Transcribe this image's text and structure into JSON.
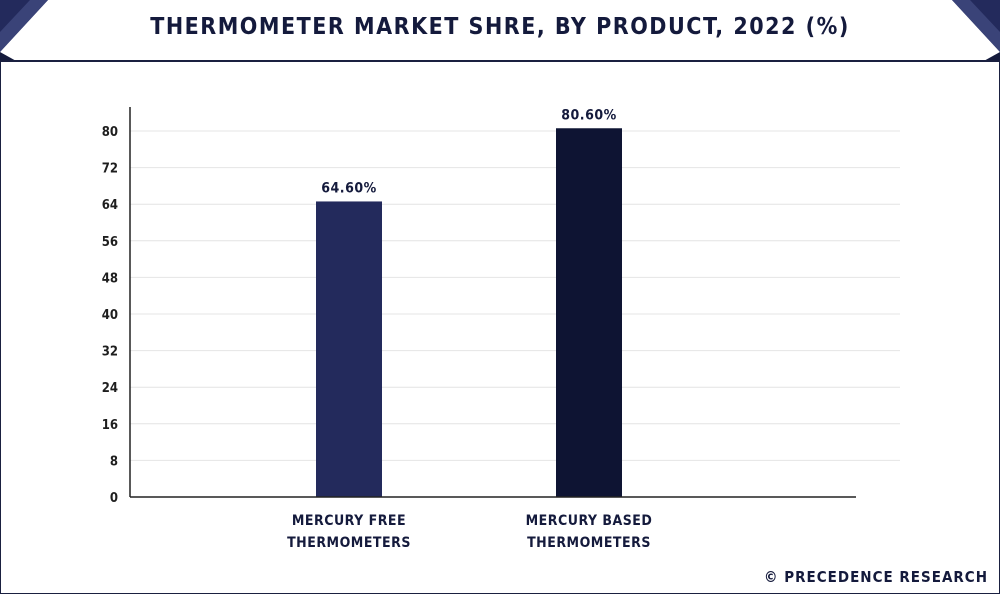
{
  "title": "THERMOMETER MARKET SHRE, BY PRODUCT, 2022 (%)",
  "credit": "© PRECEDENCE RESEARCH",
  "colors": {
    "navy": "#232a5c",
    "dark_navy": "#0e1433",
    "grid": "#e4e4e4",
    "axis": "#222222"
  },
  "chart_data": {
    "type": "bar",
    "title": "THERMOMETER MARKET SHRE, BY PRODUCT, 2022 (%)",
    "categories": [
      [
        "MERCURY FREE",
        "THERMOMETERS"
      ],
      [
        "MERCURY BASED",
        "THERMOMETERS"
      ]
    ],
    "values": [
      64.6,
      80.6
    ],
    "data_labels": [
      "64.60%",
      "80.60%"
    ],
    "bar_colors": [
      "#232a5c",
      "#0e1433"
    ],
    "yticks": [
      0,
      8,
      16,
      24,
      32,
      40,
      48,
      56,
      64,
      72,
      80
    ],
    "ylim": [
      0,
      80
    ],
    "grid": true,
    "xlabel": "",
    "ylabel": ""
  }
}
